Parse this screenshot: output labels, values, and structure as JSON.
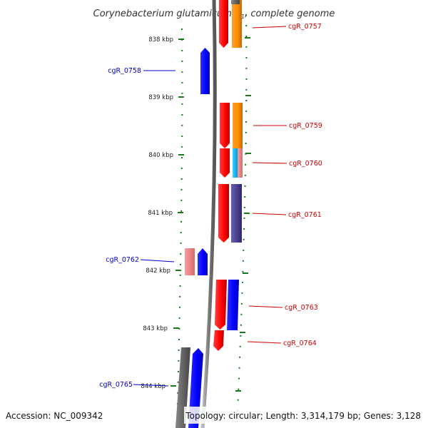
{
  "title": {
    "main": "Corynebacterium glutamicum R",
    "suffix": ", complete genome",
    "subscript": "1"
  },
  "colors": {
    "label_forward": "#cc0000",
    "label_reverse": "#0000cc",
    "backbone": "#8c8c8c",
    "tick": "#1a7a1a",
    "red": "#ff0000",
    "blue": "#0000ff",
    "orange": "#ff8c00",
    "cyan": "#00bfff",
    "pink": "#f08080",
    "purple": "#483d8b",
    "gray": "#555555"
  },
  "scale": {
    "unit": "kbp",
    "ticks": [
      "838 kbp",
      "839 kbp",
      "840 kbp",
      "841 kbp",
      "842 kbp",
      "843 kbp",
      "844 kbp"
    ]
  },
  "genes": [
    {
      "id": "cgR_0757",
      "strand": "forward"
    },
    {
      "id": "cgR_0758",
      "strand": "reverse"
    },
    {
      "id": "cgR_0759",
      "strand": "forward"
    },
    {
      "id": "cgR_0760",
      "strand": "forward"
    },
    {
      "id": "cgR_0761",
      "strand": "forward"
    },
    {
      "id": "cgR_0762",
      "strand": "reverse"
    },
    {
      "id": "cgR_0763",
      "strand": "forward"
    },
    {
      "id": "cgR_0764",
      "strand": "forward"
    },
    {
      "id": "cgR_0765",
      "strand": "reverse"
    }
  ],
  "footer": {
    "accession": "Accession: NC_009342",
    "summary": "Topology: circular; Length: 3,314,179 bp; Genes: 3,128"
  }
}
